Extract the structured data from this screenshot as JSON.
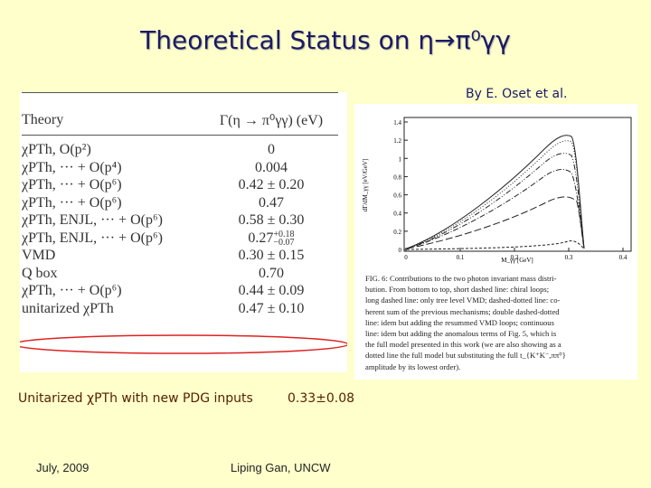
{
  "slide": {
    "title": "Theoretical Status on η→π⁰γγ",
    "credit": "By E. Oset et al.",
    "table": {
      "header": [
        "Theory",
        "Γ(η → π⁰γγ) (eV)"
      ],
      "rows": [
        [
          "χPTh, O(p²)",
          "0"
        ],
        [
          "χPTh, ··· + O(p⁴)",
          "0.004"
        ],
        [
          "χPTh, ··· + O(p⁶)",
          "0.42 ± 0.20"
        ],
        [
          "χPTh, ··· + O(p⁶)",
          "0.47"
        ],
        [
          "χPTh, ENJL, ··· + O(p⁶)",
          "0.58 ± 0.30"
        ],
        [
          "χPTh, ENJL, ··· + O(p⁶)",
          {
            "value": "0.27",
            "plus": "+0.18",
            "minus": "−0.07"
          }
        ],
        [
          "VMD",
          "0.30 ± 0.15"
        ],
        [
          "Q box",
          "0.70"
        ],
        [
          "χPTh, ··· + O(p⁶)",
          "0.44 ± 0.09"
        ],
        [
          "unitarized χPTh",
          "0.47 ± 0.10"
        ]
      ]
    },
    "figure": {
      "ylabel": "dΓ/dM_γγ [eV/GeV]",
      "xlabel": "M_γγ [GeV]",
      "yticks": [
        "0",
        "0.2",
        "0.4",
        "0.6",
        "0.8",
        "1",
        "1.2",
        "1.4"
      ],
      "xticks": [
        "0",
        "0.1",
        "0.2",
        "0.3",
        "0.4"
      ],
      "caption": [
        "FIG. 6: Contributions to the two photon invariant mass distri-",
        "bution. From bottom to top, short dashed line: chiral loops;",
        "long dashed line: only tree level VMD; dashed-dotted line: co-",
        "herent sum of the previous mechanisms; double dashed-dotted",
        "line: idem but adding the resummed VMD loops; continuous",
        "line: idem but adding the anomalous terms of Fig. 5, which is",
        "the full model presented in this work (we are also showing as a",
        "dotted line the full model but substituting the full t_{K⁺K⁻,ππ⁰}",
        "amplitude by its lowest order)."
      ]
    },
    "result": {
      "label": "Unitarized χPTh with new PDG inputs",
      "value": "0.33±0.08"
    },
    "footer": {
      "date": "July, 2009",
      "author": "Liping Gan, UNCW"
    }
  }
}
